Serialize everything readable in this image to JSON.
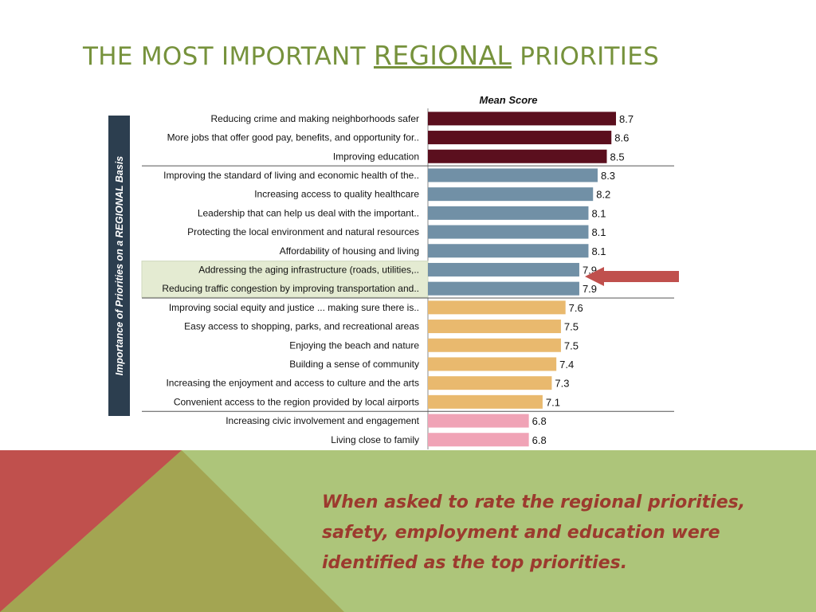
{
  "slide": {
    "title_part1": "THE MOST IMPORTANT ",
    "title_emphasis": "REGIONAL",
    "title_part2": " PRIORITIES",
    "caption": "When asked to rate the regional priorities, safety, employment and education were identified as the top priorities.",
    "colors": {
      "title": "#76923c",
      "caption": "#9c3a2e",
      "band_green": "#adc57a",
      "band_olive": "#a3a552",
      "band_red": "#c0504d"
    }
  },
  "chart_data": {
    "type": "bar",
    "orientation": "horizontal",
    "title": "Mean Score",
    "ylabel": "Importance of Priorities on a REGIONAL Basis",
    "xlim": [
      0,
      10
    ],
    "legend": "none",
    "highlight_color": "#e4ebd2",
    "arrow_color": "#c0504d",
    "categories": [
      "Reducing crime and making neighborhoods safer",
      "More jobs that offer good pay, benefits, and opportunity for..",
      "Improving education",
      "Improving the standard of living and economic health of the..",
      "Increasing access to quality healthcare",
      "Leadership that can help us deal with the important..",
      "Protecting the local environment and natural resources",
      "Affordability of housing and living",
      "Addressing the aging infrastructure (roads, utilities,..",
      "Reducing traffic congestion by improving transportation and..",
      "Improving social equity and justice ... making sure there is..",
      "Easy access to shopping, parks, and recreational areas",
      "Enjoying the beach and nature",
      "Building a sense of community",
      "Increasing the enjoyment and access to culture and the arts",
      "Convenient access to the region provided by local airports",
      "Increasing civic involvement and engagement",
      "Living close to family"
    ],
    "values": [
      8.7,
      8.6,
      8.5,
      8.3,
      8.2,
      8.1,
      8.1,
      8.1,
      7.9,
      7.9,
      7.6,
      7.5,
      7.5,
      7.4,
      7.3,
      7.1,
      6.8,
      6.8
    ],
    "value_labels": [
      "8.7",
      "8.6",
      "8.5",
      "8.3",
      "8.2",
      "8.1",
      "8.1",
      "8.1",
      "7.9",
      "7.9",
      "7.6",
      "7.5",
      "7.5",
      "7.4",
      "7.3",
      "7.1",
      "6.8",
      "6.8"
    ],
    "tiers": [
      0,
      0,
      0,
      1,
      1,
      1,
      1,
      1,
      1,
      1,
      2,
      2,
      2,
      2,
      2,
      2,
      3,
      3
    ],
    "tier_colors": [
      "#5b0f1e",
      "#7190a6",
      "#e9b96e",
      "#f0a3b6"
    ],
    "highlighted": [
      8,
      9
    ]
  }
}
